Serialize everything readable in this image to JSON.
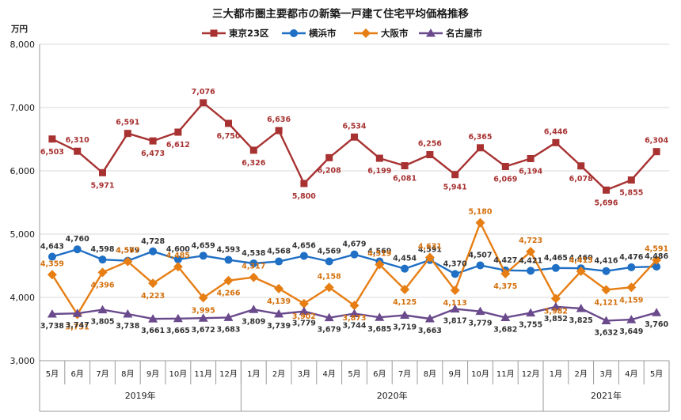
{
  "chart_data": {
    "type": "line",
    "title": "三大都市圏主要都市の新築一戸建て住宅平均価格推移",
    "ylabel": "万円",
    "ylim": [
      3000,
      8000
    ],
    "yticks": [
      "3,000",
      "4,000",
      "5,000",
      "6,000",
      "7,000",
      "8,000"
    ],
    "categories": [
      "5月",
      "6月",
      "7月",
      "8月",
      "9月",
      "10月",
      "11月",
      "12月",
      "1月",
      "2月",
      "3月",
      "4月",
      "5月",
      "6月",
      "7月",
      "8月",
      "9月",
      "10月",
      "11月",
      "12月",
      "1月",
      "2月",
      "3月",
      "4月",
      "5月"
    ],
    "year_groups": [
      {
        "label": "2019年",
        "start": 0,
        "end": 7
      },
      {
        "label": "2020年",
        "start": 8,
        "end": 19
      },
      {
        "label": "2021年",
        "start": 20,
        "end": 24
      }
    ],
    "grid": true,
    "legend_position": "top",
    "series": [
      {
        "name": "東京23区",
        "color": "#a83232",
        "marker": "square",
        "label_position": "below",
        "values": [
          6503,
          6310,
          5971,
          6591,
          6473,
          6612,
          7076,
          6750,
          6326,
          6636,
          5800,
          6208,
          6534,
          6199,
          6081,
          6256,
          5941,
          6365,
          6069,
          6194,
          6446,
          6078,
          5696,
          5855,
          6304
        ],
        "labels": [
          "6,503",
          "6,310",
          "5,971",
          "6,591",
          "6,473",
          "6,612",
          "7,076",
          "6,750",
          "6,326",
          "6,636",
          "5,800",
          "6,208",
          "6,534",
          "6,199",
          "6,081",
          "6,256",
          "5,941",
          "6,365",
          "6,069",
          "6,194",
          "6,446",
          "6,078",
          "5,696",
          "5,855",
          "6,304"
        ]
      },
      {
        "name": "横浜市",
        "color": "#1f6fc4",
        "marker": "circle",
        "label_position": "above",
        "values": [
          4643,
          4760,
          4598,
          4579,
          4728,
          4600,
          4659,
          4593,
          4538,
          4568,
          4656,
          4569,
          4679,
          4569,
          4454,
          4591,
          4370,
          4507,
          4427,
          4421,
          4465,
          4460,
          4416,
          4476,
          4486
        ],
        "labels": [
          "4,643",
          "4,760",
          "4,598",
          "4,579",
          "4,728",
          "4,600",
          "4,659",
          "4,593",
          "4,538",
          "4,568",
          "4,656",
          "4,569",
          "4,679",
          "4,569",
          "4,454",
          "4,591",
          "4,370",
          "4,507",
          "4,427",
          "4,421",
          "4,465",
          "4,460",
          "4,416",
          "4,476",
          "4,486"
        ]
      },
      {
        "name": "大阪市",
        "color": "#e67e14",
        "marker": "diamond",
        "label_position": "below",
        "values": [
          4359,
          3731,
          4396,
          4567,
          4223,
          4485,
          3995,
          4266,
          4317,
          4139,
          3902,
          4158,
          3873,
          4519,
          4125,
          4631,
          4113,
          5180,
          4375,
          4723,
          3982,
          4413,
          4121,
          4159,
          4591
        ],
        "labels": [
          "4,359",
          "3,731",
          "4,396",
          "4,567",
          "4,223",
          "4,485",
          "3,995",
          "4,266",
          "4,317",
          "4,139",
          "3,902",
          "4,158",
          "3,873",
          "4,519",
          "4,125",
          "4,631",
          "4,113",
          "5,180",
          "4,375",
          "4,723",
          "3,982",
          "4,413",
          "4,121",
          "4,159",
          "4,591"
        ]
      },
      {
        "name": "名古屋市",
        "color": "#6a4a8c",
        "marker": "triangle",
        "label_position": "below",
        "values": [
          3738,
          3747,
          3805,
          3738,
          3661,
          3665,
          3672,
          3683,
          3809,
          3739,
          3779,
          3679,
          3744,
          3685,
          3719,
          3663,
          3817,
          3779,
          3682,
          3755,
          3852,
          3825,
          3632,
          3649,
          3760
        ],
        "labels": [
          "3,738",
          "3,747",
          "3,805",
          "3,738",
          "3,661",
          "3,665",
          "3,672",
          "3,683",
          "3,809",
          "3,739",
          "3,779",
          "3,679",
          "3,744",
          "3,685",
          "3,719",
          "3,663",
          "3,817",
          "3,779",
          "3,682",
          "3,755",
          "3,852",
          "3,825",
          "3,632",
          "3,649",
          "3,760"
        ]
      }
    ]
  }
}
